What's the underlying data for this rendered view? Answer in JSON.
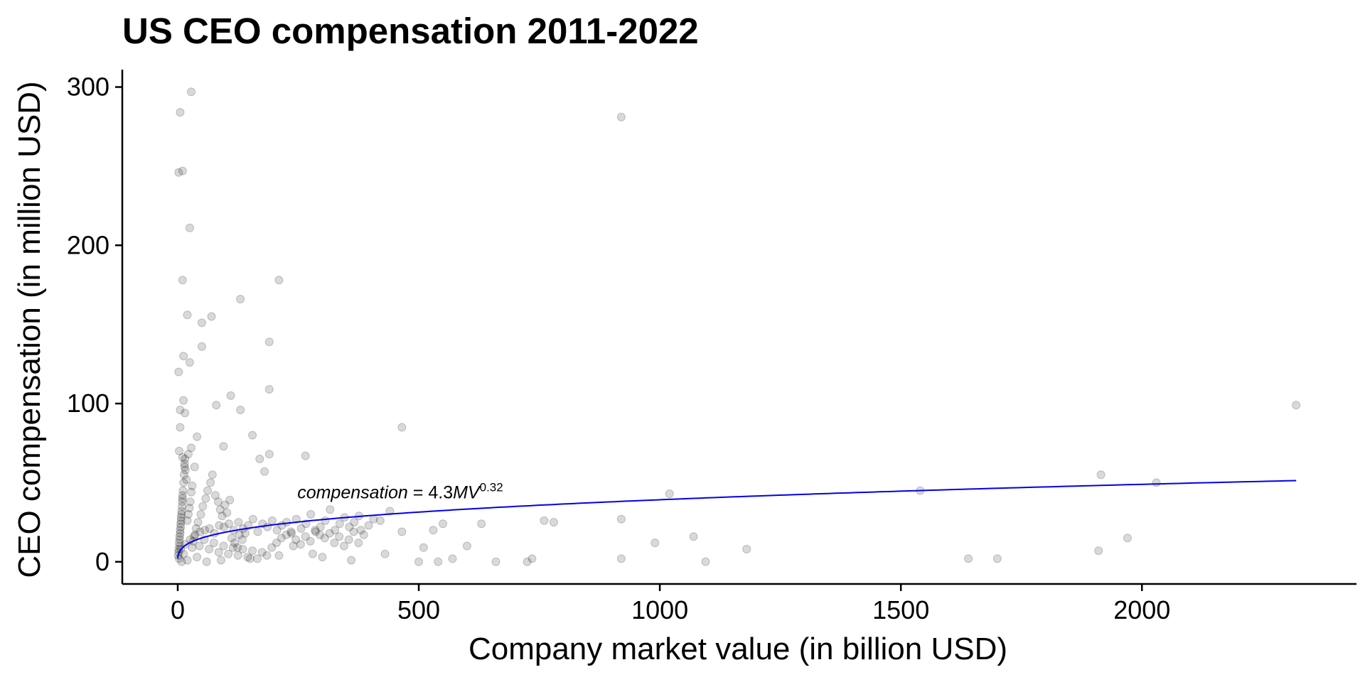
{
  "chart_data": {
    "type": "scatter",
    "title": "US CEO compensation 2011-2022",
    "xlabel": "Company market value (in billion USD)",
    "ylabel": "CEO compensation (in million USD)",
    "xlim": [
      -115,
      2445
    ],
    "ylim": [
      -14,
      311
    ],
    "x_ticks": [
      0,
      500,
      1000,
      1500,
      2000
    ],
    "x_tick_labels": [
      "0",
      "500",
      "1000",
      "1500",
      "2000"
    ],
    "y_ticks": [
      0,
      100,
      200,
      300
    ],
    "y_tick_labels": [
      "0",
      "100",
      "200",
      "300"
    ],
    "grid": false,
    "legend": "none",
    "point_color": "#000000",
    "point_opacity": 0.15,
    "fit_color": "#0000ee",
    "annotation": {
      "prefix": "compensation",
      "equals": " = ",
      "coef": "4.3",
      "var": "MV",
      "exponent": "0.32"
    },
    "fit": {
      "a": 4.3,
      "b": 0.32,
      "x_start": 0.1,
      "x_end": 2320
    },
    "series": [
      {
        "points": [
          [
            28,
            297
          ],
          [
            5,
            284
          ],
          [
            920,
            281
          ],
          [
            10,
            247
          ],
          [
            2,
            246
          ],
          [
            25,
            211
          ],
          [
            10,
            178
          ],
          [
            210,
            178
          ],
          [
            130,
            166
          ],
          [
            20,
            156
          ],
          [
            70,
            155
          ],
          [
            50,
            151
          ],
          [
            50,
            136
          ],
          [
            190,
            139
          ],
          [
            12,
            130
          ],
          [
            25,
            126
          ],
          [
            2,
            120
          ],
          [
            190,
            109
          ],
          [
            110,
            105
          ],
          [
            12,
            102
          ],
          [
            80,
            99
          ],
          [
            130,
            96
          ],
          [
            5,
            96
          ],
          [
            15,
            94
          ],
          [
            2320,
            99
          ],
          [
            465,
            85
          ],
          [
            5,
            85
          ],
          [
            155,
            80
          ],
          [
            40,
            79
          ],
          [
            95,
            73
          ],
          [
            265,
            67
          ],
          [
            190,
            68
          ],
          [
            170,
            65
          ],
          [
            10,
            66
          ],
          [
            35,
            60
          ],
          [
            180,
            57
          ],
          [
            1915,
            55
          ],
          [
            2030,
            50
          ],
          [
            1020,
            43
          ],
          [
            1540,
            45
          ],
          [
            920,
            27
          ],
          [
            760,
            26
          ],
          [
            780,
            25
          ],
          [
            440,
            32
          ],
          [
            550,
            24
          ],
          [
            630,
            24
          ],
          [
            465,
            19
          ],
          [
            530,
            20
          ],
          [
            380,
            20
          ],
          [
            420,
            26
          ],
          [
            510,
            9
          ],
          [
            600,
            10
          ],
          [
            1070,
            16
          ],
          [
            1970,
            15
          ],
          [
            1180,
            8
          ],
          [
            990,
            12
          ],
          [
            1910,
            7
          ],
          [
            920,
            2
          ],
          [
            1095,
            0
          ],
          [
            1640,
            2
          ],
          [
            1700,
            2
          ],
          [
            660,
            0
          ],
          [
            725,
            0
          ],
          [
            735,
            2
          ],
          [
            500,
            0
          ],
          [
            540,
            0
          ],
          [
            570,
            2
          ],
          [
            430,
            5
          ],
          [
            360,
            1
          ],
          [
            280,
            5
          ],
          [
            300,
            3
          ],
          [
            240,
            10
          ],
          [
            210,
            4
          ],
          [
            150,
            2
          ],
          [
            90,
            1
          ],
          [
            60,
            0
          ],
          [
            40,
            3
          ],
          [
            20,
            1
          ],
          [
            8,
            0
          ],
          [
            3,
            2
          ],
          [
            12,
            5
          ],
          [
            6,
            8
          ],
          [
            16,
            11
          ],
          [
            26,
            14
          ],
          [
            36,
            17
          ],
          [
            46,
            19
          ],
          [
            56,
            20
          ],
          [
            66,
            21
          ],
          [
            76,
            18
          ],
          [
            86,
            23
          ],
          [
            96,
            22
          ],
          [
            106,
            24
          ],
          [
            116,
            20
          ],
          [
            126,
            25
          ],
          [
            136,
            21
          ],
          [
            146,
            23
          ],
          [
            156,
            27
          ],
          [
            166,
            19
          ],
          [
            176,
            24
          ],
          [
            186,
            22
          ],
          [
            196,
            26
          ],
          [
            206,
            20
          ],
          [
            216,
            23
          ],
          [
            226,
            25
          ],
          [
            236,
            18
          ],
          [
            246,
            27
          ],
          [
            256,
            21
          ],
          [
            266,
            24
          ],
          [
            276,
            30
          ],
          [
            286,
            19
          ],
          [
            296,
            22
          ],
          [
            306,
            26
          ],
          [
            316,
            33
          ],
          [
            326,
            20
          ],
          [
            336,
            24
          ],
          [
            346,
            28
          ],
          [
            356,
            22
          ],
          [
            366,
            25
          ],
          [
            376,
            29
          ],
          [
            386,
            17
          ],
          [
            396,
            23
          ],
          [
            406,
            27
          ],
          [
            4,
            10
          ],
          [
            4,
            14
          ],
          [
            5,
            18
          ],
          [
            6,
            22
          ],
          [
            7,
            26
          ],
          [
            8,
            30
          ],
          [
            9,
            35
          ],
          [
            10,
            40
          ],
          [
            11,
            45
          ],
          [
            12,
            50
          ],
          [
            13,
            55
          ],
          [
            14,
            60
          ],
          [
            15,
            65
          ],
          [
            3,
            70
          ],
          [
            2,
            6
          ],
          [
            3,
            12
          ],
          [
            4,
            16
          ],
          [
            5,
            20
          ],
          [
            6,
            24
          ],
          [
            7,
            28
          ],
          [
            8,
            32
          ],
          [
            9,
            38
          ],
          [
            10,
            42
          ],
          [
            1,
            4
          ],
          [
            2,
            8
          ],
          [
            30,
            9
          ],
          [
            32,
            13
          ],
          [
            34,
            16
          ],
          [
            38,
            21
          ],
          [
            42,
            25
          ],
          [
            48,
            30
          ],
          [
            52,
            35
          ],
          [
            58,
            40
          ],
          [
            62,
            45
          ],
          [
            68,
            50
          ],
          [
            72,
            55
          ],
          [
            78,
            42
          ],
          [
            84,
            38
          ],
          [
            88,
            33
          ],
          [
            92,
            29
          ],
          [
            98,
            36
          ],
          [
            102,
            31
          ],
          [
            108,
            39
          ],
          [
            112,
            15
          ],
          [
            118,
            12
          ],
          [
            124,
            9
          ],
          [
            128,
            17
          ],
          [
            134,
            14
          ],
          [
            140,
            18
          ],
          [
            20,
            26
          ],
          [
            22,
            30
          ],
          [
            24,
            34
          ],
          [
            26,
            38
          ],
          [
            28,
            44
          ],
          [
            30,
            48
          ],
          [
            18,
            52
          ],
          [
            16,
            58
          ],
          [
            14,
            62
          ],
          [
            22,
            68
          ],
          [
            28,
            72
          ],
          [
            45,
            10
          ],
          [
            55,
            14
          ],
          [
            65,
            8
          ],
          [
            75,
            12
          ],
          [
            85,
            6
          ],
          [
            95,
            10
          ],
          [
            105,
            5
          ],
          [
            115,
            9
          ],
          [
            125,
            4
          ],
          [
            135,
            8
          ],
          [
            145,
            3
          ],
          [
            155,
            7
          ],
          [
            165,
            2
          ],
          [
            175,
            6
          ],
          [
            185,
            4
          ],
          [
            195,
            9
          ],
          [
            205,
            12
          ],
          [
            215,
            15
          ],
          [
            225,
            17
          ],
          [
            235,
            19
          ],
          [
            245,
            14
          ],
          [
            255,
            11
          ],
          [
            265,
            16
          ],
          [
            275,
            13
          ],
          [
            285,
            20
          ],
          [
            295,
            17
          ],
          [
            305,
            15
          ],
          [
            315,
            18
          ],
          [
            325,
            12
          ],
          [
            335,
            16
          ],
          [
            345,
            10
          ],
          [
            355,
            14
          ],
          [
            365,
            19
          ],
          [
            375,
            12
          ]
        ]
      }
    ]
  }
}
